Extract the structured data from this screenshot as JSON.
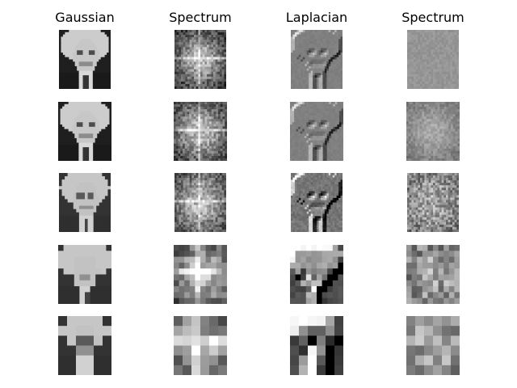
{
  "chart_data": {
    "type": "image-grid",
    "columns": [
      "Gaussian",
      "Spectrum",
      "Laplacian",
      "Spectrum"
    ],
    "rows": 5
  }
}
